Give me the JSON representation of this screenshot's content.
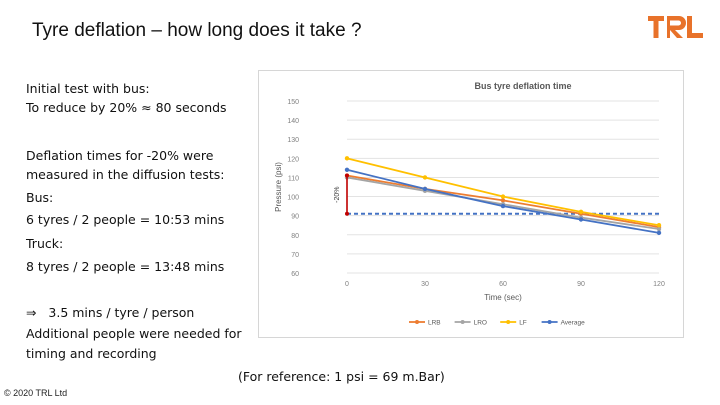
{
  "slide": {
    "title": "Tyre deflation – how long does it take ?",
    "brand_color": "#e8722a",
    "logo_text": "TRL",
    "initial_test": {
      "line1": "Initial test with bus:",
      "line2": "To reduce by 20% ≈ 80 seconds"
    },
    "diffusion": {
      "line1": "Deflation times for -20% were",
      "line2": "measured in the diffusion tests:",
      "bus_label": "Bus:",
      "bus_value": "6 tyres / 2 people = 10:53 mins",
      "truck_label": "Truck:",
      "truck_value": "8 tyres / 2 people = 13:48 mins"
    },
    "conclusion": {
      "arrow": "⇒",
      "line1": "3.5 mins / tyre / person",
      "line2": "Additional people were needed for",
      "line3": "timing and recording"
    },
    "reference": "(For reference: 1 psi = 69 m.Bar)",
    "copyright": "© 2020 TRL Ltd"
  },
  "chart_data": {
    "type": "line",
    "title": "Bus tyre deflation time",
    "xlabel": "Time (sec)",
    "ylabel": "Pressure (psi)",
    "x_ticks": [
      0,
      30,
      60,
      90,
      120
    ],
    "y_ticks": [
      60,
      70,
      80,
      90,
      100,
      110,
      120,
      130,
      140,
      150
    ],
    "xlim": [
      0,
      120
    ],
    "ylim": [
      60,
      150
    ],
    "grid": true,
    "legend_position": "bottom",
    "x": [
      0,
      30,
      60,
      90,
      120
    ],
    "series": [
      {
        "name": "LRB",
        "color": "#ed7d31",
        "values": [
          111,
          104,
          98,
          91,
          84
        ]
      },
      {
        "name": "LRO",
        "color": "#a5a5a5",
        "values": [
          110,
          103,
          96,
          89,
          83
        ]
      },
      {
        "name": "LF",
        "color": "#ffc000",
        "values": [
          120,
          110,
          100,
          92,
          85
        ]
      },
      {
        "name": "Average",
        "color": "#4472c4",
        "values": [
          114,
          104,
          95,
          88,
          81
        ]
      }
    ],
    "reference_line": {
      "value": 91,
      "color": "#4472c4",
      "style": "dashed"
    },
    "annotation": {
      "label": "-20%",
      "x": 0,
      "from": 111,
      "to": 91,
      "color": "#c00000"
    }
  }
}
